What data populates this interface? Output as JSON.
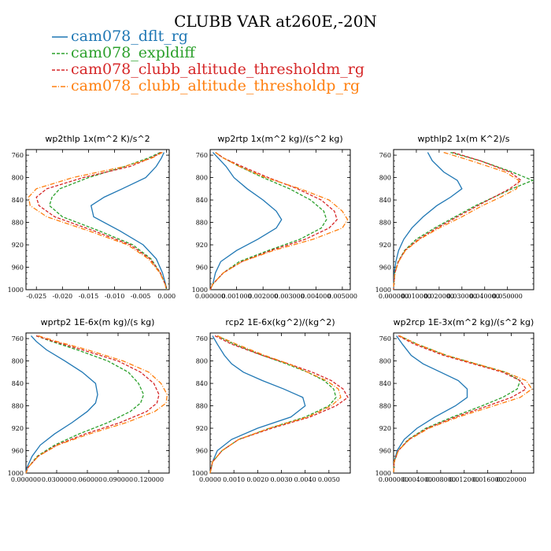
{
  "title": "CLUBB VAR at260E,-20N",
  "colors": {
    "cam078_dflt_rg": "#1f77b4",
    "cam078_expldiff": "#2ca02c",
    "cam078_clubb_altitude_thresholdm_rg": "#d62728",
    "cam078_clubb_altitude_thresholdp_rg": "#ff7f0e"
  },
  "legend": [
    {
      "name": "cam078_dflt_rg",
      "color": "#1f77b4",
      "dash": "solid"
    },
    {
      "name": "cam078_expldiff",
      "color": "#2ca02c",
      "dash": "dash"
    },
    {
      "name": "cam078_clubb_altitude_thresholdm_rg",
      "color": "#d62728",
      "dash": "dash"
    },
    {
      "name": "cam078_clubb_altitude_thresholdp_rg",
      "color": "#ff7f0e",
      "dash": "dashdot"
    }
  ],
  "chart_data": [
    {
      "type": "line",
      "title": "wp2thlp  1x(m^2 K)/s^2",
      "ylim": [
        1000,
        750
      ],
      "yticks": [
        760,
        800,
        840,
        880,
        920,
        960,
        1000
      ],
      "xlim": [
        -0.027,
        0.0005
      ],
      "xticks": [
        -0.025,
        -0.02,
        -0.015,
        -0.01,
        -0.005,
        0.0
      ],
      "xticklabels": [
        "-0.025",
        "-0.020",
        "-0.015",
        "-0.010",
        "-0.005",
        "0.000"
      ],
      "y": [
        755,
        765,
        780,
        800,
        820,
        835,
        850,
        870,
        895,
        920,
        945,
        970,
        990,
        1000
      ],
      "series": [
        {
          "name": "cam078_dflt_rg",
          "values": [
            -0.0005,
            -0.001,
            -0.002,
            -0.004,
            -0.0085,
            -0.012,
            -0.0145,
            -0.014,
            -0.009,
            -0.0045,
            -0.002,
            -0.0008,
            -0.0002,
            0.0
          ]
        },
        {
          "name": "cam078_expldiff",
          "values": [
            -0.0012,
            -0.0035,
            -0.008,
            -0.015,
            -0.0205,
            -0.022,
            -0.0225,
            -0.02,
            -0.013,
            -0.0065,
            -0.003,
            -0.0012,
            -0.0003,
            0.0
          ]
        },
        {
          "name": "cam078_clubb_altitude_thresholdm_rg",
          "values": [
            -0.001,
            -0.003,
            -0.007,
            -0.016,
            -0.023,
            -0.025,
            -0.0245,
            -0.0215,
            -0.014,
            -0.007,
            -0.0032,
            -0.0012,
            -0.0003,
            0.0
          ]
        },
        {
          "name": "cam078_clubb_altitude_thresholdp_rg",
          "values": [
            -0.0008,
            -0.0028,
            -0.008,
            -0.018,
            -0.025,
            -0.0265,
            -0.0262,
            -0.023,
            -0.015,
            -0.0075,
            -0.0035,
            -0.0013,
            -0.0003,
            0.0
          ]
        }
      ]
    },
    {
      "type": "line",
      "title": "wp2rtp  1x(m^2 kg)/(s^2 kg)",
      "ylim": [
        1000,
        750
      ],
      "yticks": [
        760,
        800,
        840,
        880,
        920,
        960,
        1000
      ],
      "xlim": [
        0,
        0.0053
      ],
      "xticks": [
        0.0,
        0.001,
        0.002,
        0.003,
        0.004,
        0.005
      ],
      "xticklabels": [
        "0.000000",
        "0.001000",
        "0.002000",
        "0.003000",
        "0.004000",
        "0.005000"
      ],
      "y": [
        755,
        765,
        780,
        800,
        820,
        840,
        860,
        875,
        890,
        910,
        930,
        950,
        970,
        990,
        1000
      ],
      "series": [
        {
          "name": "cam078_dflt_rg",
          "values": [
            0.0001,
            0.0003,
            0.0006,
            0.0009,
            0.0014,
            0.002,
            0.0025,
            0.0027,
            0.0025,
            0.0018,
            0.001,
            0.0004,
            0.0002,
            0.0001,
            0.0
          ]
        },
        {
          "name": "cam078_expldiff",
          "values": [
            0.0002,
            0.0005,
            0.0011,
            0.002,
            0.003,
            0.0038,
            0.0043,
            0.0044,
            0.0042,
            0.0034,
            0.0022,
            0.0011,
            0.0005,
            0.0001,
            0.0
          ]
        },
        {
          "name": "cam078_clubb_altitude_thresholdm_rg",
          "values": [
            0.0002,
            0.0005,
            0.0012,
            0.0022,
            0.0033,
            0.0042,
            0.0047,
            0.0048,
            0.0045,
            0.0036,
            0.0023,
            0.0012,
            0.0005,
            0.0001,
            0.0
          ]
        },
        {
          "name": "cam078_clubb_altitude_thresholdp_rg",
          "values": [
            0.0002,
            0.0005,
            0.0011,
            0.0021,
            0.0034,
            0.0045,
            0.005,
            0.0052,
            0.005,
            0.0039,
            0.0024,
            0.0012,
            0.0005,
            0.0001,
            0.0
          ]
        }
      ]
    },
    {
      "type": "line",
      "title": "wpthlp2  1x(m K^2)/s",
      "ylim": [
        1000,
        750
      ],
      "yticks": [
        760,
        800,
        840,
        880,
        920,
        960,
        1000
      ],
      "xlim": [
        0,
        0.0615
      ],
      "xticks": [
        0.0,
        0.01,
        0.02,
        0.03,
        0.04,
        0.05
      ],
      "xticklabels": [
        "0.000000",
        "0.010000",
        "0.020000",
        "0.030000",
        "0.040000",
        "0.050000"
      ],
      "y": [
        755,
        770,
        790,
        805,
        820,
        835,
        850,
        870,
        890,
        910,
        930,
        950,
        970,
        990,
        1000
      ],
      "series": [
        {
          "name": "cam078_dflt_rg",
          "values": [
            0.015,
            0.017,
            0.022,
            0.028,
            0.03,
            0.025,
            0.019,
            0.013,
            0.008,
            0.0045,
            0.0022,
            0.001,
            0.0003,
            0.0001,
            0.0
          ]
        },
        {
          "name": "cam078_expldiff",
          "values": [
            0.025,
            0.038,
            0.052,
            0.061,
            0.052,
            0.044,
            0.036,
            0.027,
            0.018,
            0.01,
            0.0048,
            0.002,
            0.0006,
            0.0001,
            0.0
          ]
        },
        {
          "name": "cam078_clubb_altitude_thresholdm_rg",
          "values": [
            0.026,
            0.038,
            0.051,
            0.056,
            0.051,
            0.044,
            0.037,
            0.028,
            0.019,
            0.011,
            0.005,
            0.0021,
            0.0006,
            0.0001,
            0.0
          ]
        },
        {
          "name": "cam078_clubb_altitude_thresholdp_rg",
          "values": [
            0.022,
            0.034,
            0.049,
            0.055,
            0.054,
            0.047,
            0.039,
            0.03,
            0.02,
            0.0115,
            0.0052,
            0.0022,
            0.0006,
            0.0001,
            0.0
          ]
        }
      ]
    },
    {
      "type": "line",
      "title": "wprtp2  1E-6x(m kg)/(s kg)",
      "ylim": [
        1000,
        750
      ],
      "yticks": [
        760,
        800,
        840,
        880,
        920,
        960,
        1000
      ],
      "xlim": [
        0,
        0.14
      ],
      "xticks": [
        0.0,
        0.03,
        0.06,
        0.09,
        0.12
      ],
      "xticklabels": [
        "0.000000",
        "0.030000",
        "0.060000",
        "0.090000",
        "0.120000"
      ],
      "y": [
        755,
        765,
        780,
        800,
        820,
        840,
        860,
        875,
        890,
        910,
        930,
        950,
        970,
        990,
        1000
      ],
      "series": [
        {
          "name": "cam078_dflt_rg",
          "values": [
            0.005,
            0.01,
            0.02,
            0.038,
            0.055,
            0.068,
            0.07,
            0.068,
            0.06,
            0.045,
            0.028,
            0.014,
            0.006,
            0.001,
            0.0
          ]
        },
        {
          "name": "cam078_expldiff",
          "values": [
            0.01,
            0.025,
            0.05,
            0.08,
            0.1,
            0.11,
            0.115,
            0.112,
            0.102,
            0.08,
            0.052,
            0.028,
            0.011,
            0.002,
            0.0
          ]
        },
        {
          "name": "cam078_clubb_altitude_thresholdm_rg",
          "values": [
            0.01,
            0.027,
            0.055,
            0.09,
            0.112,
            0.125,
            0.13,
            0.128,
            0.118,
            0.092,
            0.058,
            0.03,
            0.012,
            0.002,
            0.0
          ]
        },
        {
          "name": "cam078_clubb_altitude_thresholdp_rg",
          "values": [
            0.012,
            0.03,
            0.06,
            0.095,
            0.12,
            0.132,
            0.138,
            0.137,
            0.126,
            0.098,
            0.062,
            0.031,
            0.012,
            0.002,
            0.0
          ]
        }
      ]
    },
    {
      "type": "line",
      "title": "rcp2  1E-6x(kg^2)/(kg^2)",
      "ylim": [
        1000,
        750
      ],
      "yticks": [
        760,
        800,
        840,
        880,
        920,
        960,
        1000
      ],
      "xlim": [
        0,
        0.0059
      ],
      "xticks": [
        0.0,
        0.001,
        0.002,
        0.003,
        0.004,
        0.005
      ],
      "xticklabels": [
        "0.0000",
        "0.0010",
        "0.0020",
        "0.0030",
        "0.0040",
        "0.0050"
      ],
      "y": [
        755,
        770,
        790,
        805,
        820,
        835,
        850,
        865,
        880,
        900,
        920,
        940,
        960,
        980,
        1000
      ],
      "series": [
        {
          "name": "cam078_dflt_rg",
          "values": [
            0.0001,
            0.0003,
            0.0006,
            0.0009,
            0.0014,
            0.0022,
            0.0031,
            0.0039,
            0.004,
            0.0034,
            0.002,
            0.0009,
            0.0003,
            0.0001,
            0.0
          ]
        },
        {
          "name": "cam078_expldiff",
          "values": [
            0.0003,
            0.001,
            0.0022,
            0.0032,
            0.0041,
            0.0048,
            0.0052,
            0.0053,
            0.005,
            0.004,
            0.0025,
            0.0012,
            0.0005,
            0.0001,
            0.0
          ]
        },
        {
          "name": "cam078_clubb_altitude_thresholdm_rg",
          "values": [
            0.0002,
            0.0009,
            0.0022,
            0.0033,
            0.0043,
            0.0051,
            0.0056,
            0.0058,
            0.0053,
            0.0042,
            0.0026,
            0.0012,
            0.0005,
            0.0001,
            0.0
          ]
        },
        {
          "name": "cam078_clubb_altitude_thresholdp_rg",
          "values": [
            0.0003,
            0.0011,
            0.0023,
            0.0033,
            0.0041,
            0.0049,
            0.0054,
            0.0055,
            0.0051,
            0.0041,
            0.0025,
            0.0012,
            0.0005,
            0.0001,
            0.0
          ]
        }
      ]
    },
    {
      "type": "line",
      "title": "wp2rcp  1E-3x(m^2 kg)/(s^2 kg)",
      "ylim": [
        1000,
        750
      ],
      "yticks": [
        760,
        800,
        840,
        880,
        920,
        960,
        1000
      ],
      "xlim": [
        0,
        0.0238
      ],
      "xticks": [
        0.0,
        0.004,
        0.008,
        0.012,
        0.016,
        0.02
      ],
      "xticklabels": [
        "0.000000",
        "0.004000",
        "0.008000",
        "0.012000",
        "0.016000",
        "0.020000"
      ],
      "y": [
        755,
        770,
        790,
        805,
        820,
        835,
        850,
        865,
        880,
        900,
        920,
        940,
        960,
        980,
        1000
      ],
      "series": [
        {
          "name": "cam078_dflt_rg",
          "values": [
            0.0005,
            0.0015,
            0.003,
            0.005,
            0.008,
            0.011,
            0.0125,
            0.0125,
            0.0105,
            0.007,
            0.004,
            0.0018,
            0.0006,
            0.0001,
            0.0
          ]
        },
        {
          "name": "cam078_expldiff",
          "values": [
            0.001,
            0.004,
            0.009,
            0.014,
            0.019,
            0.0215,
            0.021,
            0.0185,
            0.015,
            0.01,
            0.0055,
            0.0025,
            0.0008,
            0.0001,
            0.0
          ]
        },
        {
          "name": "cam078_clubb_altitude_thresholdm_rg",
          "values": [
            0.0008,
            0.0035,
            0.0085,
            0.0135,
            0.0185,
            0.0215,
            0.0225,
            0.02,
            0.016,
            0.0105,
            0.0058,
            0.0026,
            0.0008,
            0.0001,
            0.0
          ]
        },
        {
          "name": "cam078_clubb_altitude_thresholdp_rg",
          "values": [
            0.001,
            0.004,
            0.009,
            0.014,
            0.019,
            0.0225,
            0.0235,
            0.0215,
            0.017,
            0.011,
            0.006,
            0.0027,
            0.0008,
            0.0001,
            0.0
          ]
        }
      ]
    }
  ]
}
